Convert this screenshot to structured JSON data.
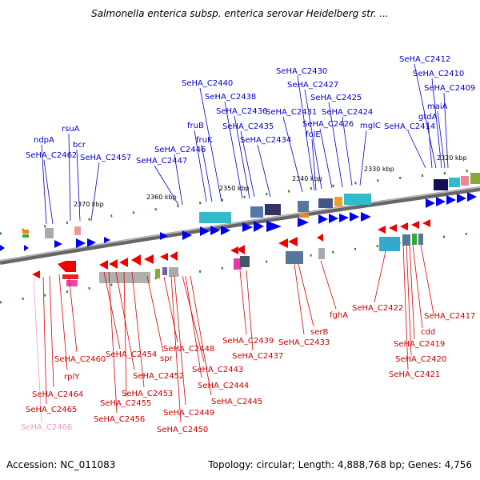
{
  "title": "Salmonella enterica subsp. enterica serovar Heidelberg str. ...",
  "footer": {
    "accession": "Accession: NC_011083",
    "summary": "Topology: circular; Length: 4,888,768 bp; Genes: 4,756"
  },
  "colors": {
    "forward": "#0000dd",
    "reverse": "#dd0000",
    "pseudo": "#ee99cc",
    "backbone": "#666666",
    "tick": "#228822"
  },
  "scale_ticks": [
    "2370 kbp",
    "2360 kbp",
    "2350 kbp",
    "2340 kbp",
    "2330 kbp",
    "2320 kbp"
  ],
  "forward_labels": [
    "SeHA_C2412",
    "SeHA_C2410",
    "SeHA_C2409",
    "maiA",
    "gtdA",
    "SeHA_C2414",
    "SeHA_C2430",
    "SeHA_C2427",
    "SeHA_C2425",
    "SeHA_C2424",
    "mglC",
    "SeHA_C2431",
    "SeHA_C2426",
    "folE",
    "SeHA_C2440",
    "SeHA_C2438",
    "SeHA_C2436",
    "fruB",
    "SeHA_C2435",
    "fruK",
    "SeHA_C2434",
    "SeHA_C2446",
    "SeHA_C2447",
    "rsuA",
    "ndpA",
    "bcr",
    "SeHA_C2462",
    "SeHA_C2457"
  ],
  "reverse_labels": [
    "SeHA_C2460",
    "rplY",
    "SeHA_C2464",
    "SeHA_C2465",
    "SeHA_C2466",
    "SeHA_C2454",
    "SeHA_C2452",
    "SeHA_C2455",
    "SeHA_C2453",
    "SeHA_C2456",
    "spr",
    "SeHA_C2448",
    "SeHA_C2443",
    "SeHA_C2444",
    "SeHA_C2445",
    "SeHA_C2449",
    "SeHA_C2450",
    "SeHA_C2439",
    "SeHA_C2437",
    "SeHA_C2433",
    "serB",
    "fghA",
    "SeHA_C2422",
    "SeHA_C2417",
    "cdd",
    "SeHA_C2419",
    "SeHA_C2420",
    "SeHA_C2421"
  ]
}
